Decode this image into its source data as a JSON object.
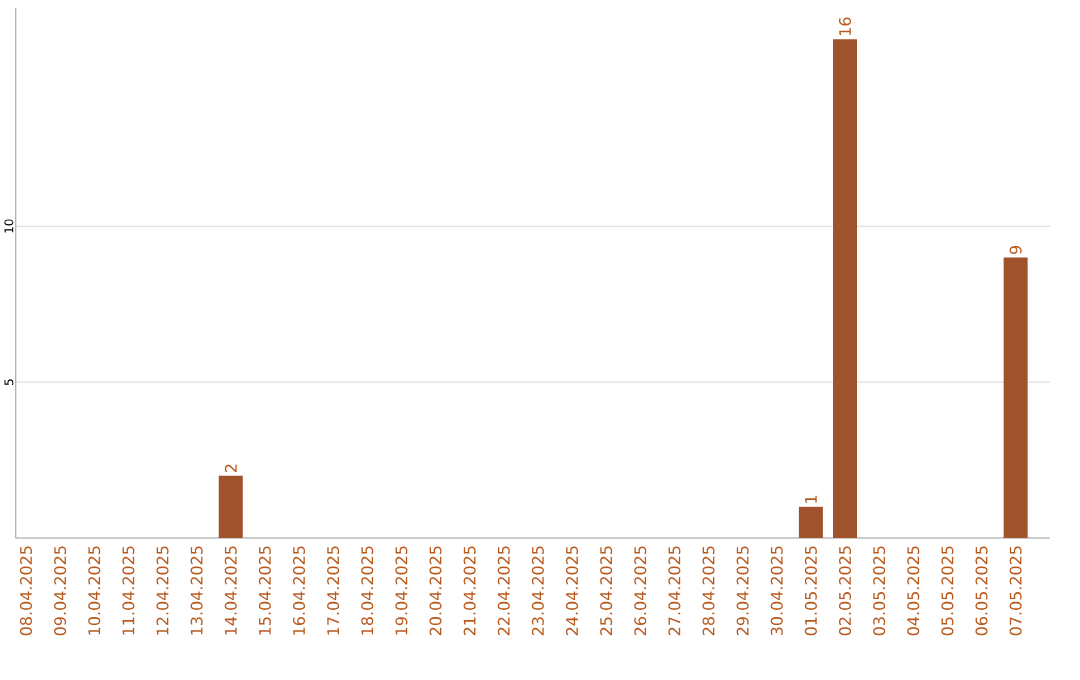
{
  "chart_data": {
    "type": "bar",
    "categories": [
      "08.04.2025",
      "09.04.2025",
      "10.04.2025",
      "11.04.2025",
      "12.04.2025",
      "13.04.2025",
      "14.04.2025",
      "15.04.2025",
      "16.04.2025",
      "17.04.2025",
      "18.04.2025",
      "19.04.2025",
      "20.04.2025",
      "21.04.2025",
      "22.04.2025",
      "23.04.2025",
      "24.04.2025",
      "25.04.2025",
      "26.04.2025",
      "27.04.2025",
      "28.04.2025",
      "29.04.2025",
      "30.04.2025",
      "01.05.2025",
      "02.05.2025",
      "03.05.2025",
      "04.05.2025",
      "05.05.2025",
      "06.05.2025",
      "07.05.2025"
    ],
    "values": [
      0,
      0,
      0,
      0,
      0,
      0,
      2,
      0,
      0,
      0,
      0,
      0,
      0,
      0,
      0,
      0,
      0,
      0,
      0,
      0,
      0,
      0,
      0,
      1,
      16,
      0,
      0,
      0,
      0,
      9
    ],
    "value_labels": [
      null,
      null,
      null,
      null,
      null,
      null,
      "2",
      null,
      null,
      null,
      null,
      null,
      null,
      null,
      null,
      null,
      null,
      null,
      null,
      null,
      null,
      null,
      null,
      "1",
      "16",
      null,
      null,
      null,
      null,
      "9"
    ],
    "color": "#a0522d",
    "ylim": [
      0,
      17
    ],
    "yticks": [
      5,
      10
    ],
    "grid": "y"
  }
}
